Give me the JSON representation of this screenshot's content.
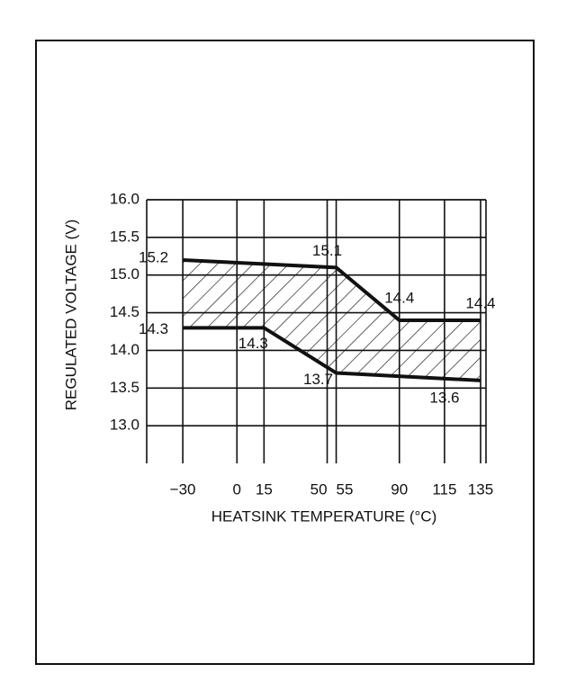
{
  "chart_data": {
    "type": "line",
    "xlabel": "HEATSINK TEMPERATURE (°C)",
    "ylabel": "REGULATED VOLTAGE (V)",
    "xlim": [
      -50,
      138
    ],
    "ylim": [
      12.5,
      16.0
    ],
    "xticks": [
      {
        "value": -30,
        "label": "−30"
      },
      0,
      15,
      50,
      55,
      90,
      115,
      135
    ],
    "yticks": [
      {
        "value": 13,
        "label": "13.0"
      },
      13.5,
      {
        "value": 14,
        "label": "14.0"
      },
      14.5,
      {
        "value": 15,
        "label": "15.0"
      },
      15.5,
      {
        "value": 16,
        "label": "16.0"
      }
    ],
    "grid": true,
    "series": [
      {
        "color": "#111111",
        "x": [
          -30,
          55,
          90,
          135
        ],
        "values": [
          15.2,
          15.1,
          14.4,
          14.4
        ]
      },
      {
        "color": "#111111",
        "x": [
          -30,
          15,
          55,
          135
        ],
        "values": [
          14.3,
          14.3,
          13.7,
          13.6
        ]
      }
    ]
  }
}
